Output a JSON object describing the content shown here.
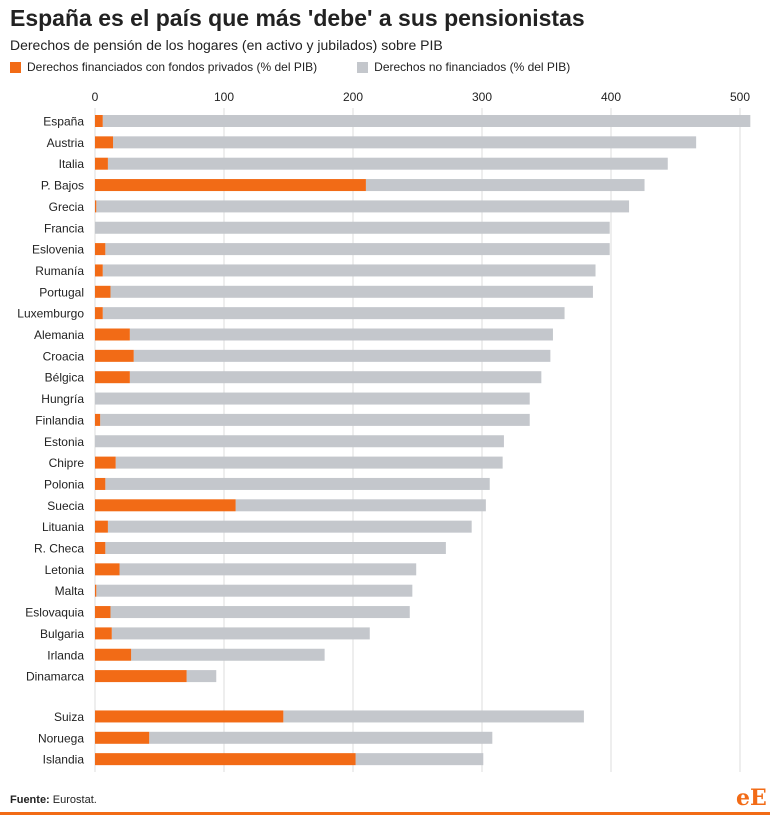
{
  "chart_data": {
    "type": "bar",
    "orientation": "horizontal",
    "stacked": true,
    "title": "España es el país que más 'debe' a sus pensionistas",
    "subtitle": "Derechos de pensión de los hogares (en activo y jubilados) sobre PIB",
    "xlabel": "",
    "ylabel": "",
    "xlim": [
      0,
      510
    ],
    "xticks": [
      0,
      100,
      200,
      300,
      400,
      500
    ],
    "grid": true,
    "legend_position": "top-left",
    "colors": {
      "private": "#f26b16",
      "unfunded": "#c4c7cc"
    },
    "categories": [
      "España",
      "Austria",
      "Italia",
      "P. Bajos",
      "Grecia",
      "Francia",
      "Eslovenia",
      "Rumanía",
      "Portugal",
      "Luxemburgo",
      "Alemania",
      "Croacia",
      "Bélgica",
      "Hungría",
      "Finlandia",
      "Estonia",
      "Chipre",
      "Polonia",
      "Suecia",
      "Lituania",
      "R. Checa",
      "Letonia",
      "Malta",
      "Eslovaquia",
      "Bulgaria",
      "Irlanda",
      "Dinamarca",
      "Suiza",
      "Noruega",
      "Islandia"
    ],
    "group_break_after": "Dinamarca",
    "series": [
      {
        "name": "Derechos financiados con fondos privados (% del PIB)",
        "values": [
          6,
          14,
          10,
          210,
          1,
          0,
          8,
          6,
          12,
          6,
          27,
          30,
          27,
          0,
          4,
          0,
          16,
          8,
          109,
          10,
          8,
          19,
          1,
          12,
          13,
          28,
          71,
          146,
          42,
          202
        ]
      },
      {
        "name": "Derechos no financiados (% del PIB)",
        "values": [
          502,
          452,
          434,
          216,
          413,
          399,
          391,
          382,
          374,
          358,
          328,
          323,
          319,
          337,
          333,
          317,
          300,
          298,
          194,
          282,
          264,
          230,
          245,
          232,
          200,
          150,
          23,
          233,
          266,
          99
        ]
      }
    ]
  },
  "footer": {
    "source_label": "Fuente:",
    "source_value": "Eurostat."
  },
  "logo": {
    "first": "e",
    "second": "E"
  }
}
